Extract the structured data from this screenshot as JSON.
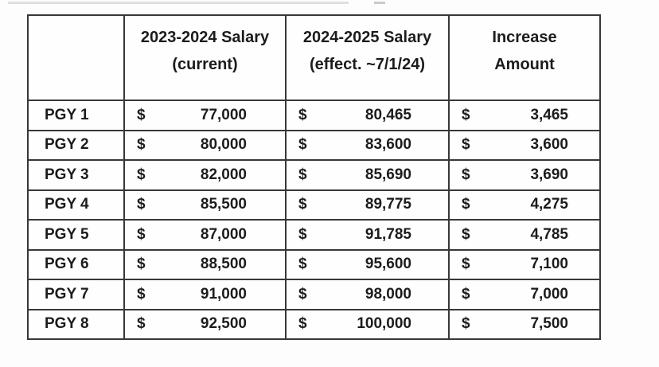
{
  "table": {
    "header": {
      "col_pgy": "",
      "col_current_line1": "2023-2024 Salary",
      "col_current_line2": "(current)",
      "col_next_line1": "2024-2025 Salary",
      "col_next_line2": "(effect. ~7/1/24)",
      "col_increase_line1": "Increase",
      "col_increase_line2": "Amount"
    },
    "currency": "$",
    "rows": [
      {
        "label": "PGY 1",
        "current": "77,000",
        "next": "80,465",
        "increase": "3,465"
      },
      {
        "label": "PGY 2",
        "current": "80,000",
        "next": "83,600",
        "increase": "3,600"
      },
      {
        "label": "PGY 3",
        "current": "82,000",
        "next": "85,690",
        "increase": "3,690"
      },
      {
        "label": "PGY 4",
        "current": "85,500",
        "next": "89,775",
        "increase": "4,275"
      },
      {
        "label": "PGY 5",
        "current": "87,000",
        "next": "91,785",
        "increase": "4,785"
      },
      {
        "label": "PGY 6",
        "current": "88,500",
        "next": "95,600",
        "increase": "7,100"
      },
      {
        "label": "PGY 7",
        "current": "91,000",
        "next": "98,000",
        "increase": "7,000"
      },
      {
        "label": "PGY 8",
        "current": "92,500",
        "next": "100,000",
        "increase": "7,500"
      }
    ]
  },
  "colors": {
    "shaded_column": "#d9d9d9",
    "border": "#383838",
    "text": "#1c1c1c",
    "background": "#fdfdfd"
  },
  "chart_data": {
    "type": "table",
    "title": "",
    "columns": [
      "",
      "2023-2024 Salary (current)",
      "2024-2025 Salary (effect. ~7/1/24)",
      "Increase Amount"
    ],
    "rows": [
      [
        "PGY 1",
        77000,
        80465,
        3465
      ],
      [
        "PGY 2",
        80000,
        83600,
        3600
      ],
      [
        "PGY 3",
        82000,
        85690,
        3690
      ],
      [
        "PGY 4",
        85500,
        89775,
        4275
      ],
      [
        "PGY 5",
        87000,
        91785,
        4785
      ],
      [
        "PGY 6",
        88500,
        95600,
        7100
      ],
      [
        "PGY 7",
        91000,
        98000,
        7000
      ],
      [
        "PGY 8",
        92500,
        100000,
        7500
      ]
    ],
    "layout_hints": {
      "shaded_column_index": 2,
      "currency": "USD",
      "grid": true
    }
  }
}
